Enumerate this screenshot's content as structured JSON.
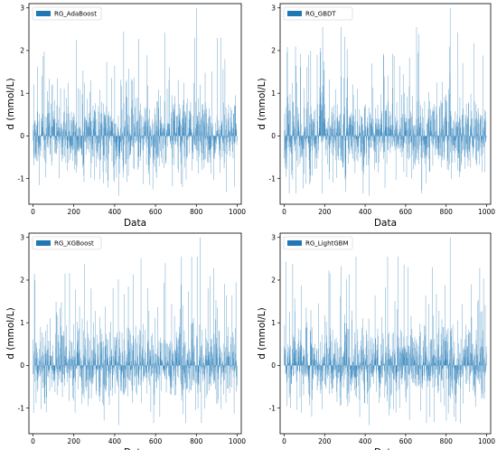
{
  "chart_data": [
    {
      "type": "bar",
      "legend": "RG_AdaBoost",
      "legend_position": "top-left",
      "color": "#1f77b4",
      "xlabel": "Data",
      "ylabel": "d (mmol/L)",
      "xlim": [
        -20,
        1020
      ],
      "ylim": [
        -1.6,
        3.1
      ],
      "xticks": [
        0,
        200,
        400,
        600,
        800,
        1000
      ],
      "yticks": [
        -1,
        0,
        1,
        2,
        3
      ],
      "n_points": 1000,
      "peak": {
        "x": 800,
        "y": 3.0
      },
      "trough": {
        "x": 420,
        "y": -1.4
      },
      "residual_std": 0.45,
      "seed": 11
    },
    {
      "type": "bar",
      "legend": "RG_GBDT",
      "legend_position": "top-left",
      "color": "#1f77b4",
      "xlabel": "Data",
      "ylabel": "d (mmol/L)",
      "xlim": [
        -20,
        1020
      ],
      "ylim": [
        -1.6,
        3.1
      ],
      "xticks": [
        0,
        200,
        400,
        600,
        800,
        1000
      ],
      "yticks": [
        -1,
        0,
        1,
        2,
        3
      ],
      "n_points": 1000,
      "peak": {
        "x": 820,
        "y": 3.0
      },
      "trough": {
        "x": 420,
        "y": -1.4
      },
      "residual_std": 0.45,
      "seed": 23
    },
    {
      "type": "bar",
      "legend": "RG_XGBoost",
      "legend_position": "top-left",
      "color": "#1f77b4",
      "xlabel": "Data",
      "ylabel": "d (mmol/L)",
      "xlim": [
        -20,
        1020
      ],
      "ylim": [
        -1.6,
        3.1
      ],
      "xticks": [
        0,
        200,
        400,
        600,
        800,
        1000
      ],
      "yticks": [
        -1,
        0,
        1,
        2,
        3
      ],
      "n_points": 1000,
      "peak": {
        "x": 820,
        "y": 3.0
      },
      "trough": {
        "x": 420,
        "y": -1.4
      },
      "residual_std": 0.45,
      "seed": 37
    },
    {
      "type": "bar",
      "legend": "RG_LightGBM",
      "legend_position": "top-left",
      "color": "#1f77b4",
      "xlabel": "Data",
      "ylabel": "d (mmol/L)",
      "xlim": [
        -20,
        1020
      ],
      "ylim": [
        -1.6,
        3.1
      ],
      "xticks": [
        0,
        200,
        400,
        600,
        800,
        1000
      ],
      "yticks": [
        -1,
        0,
        1,
        2,
        3
      ],
      "n_points": 1000,
      "peak": {
        "x": 820,
        "y": 3.0
      },
      "trough": {
        "x": 420,
        "y": -1.4
      },
      "residual_std": 0.45,
      "seed": 53
    }
  ]
}
